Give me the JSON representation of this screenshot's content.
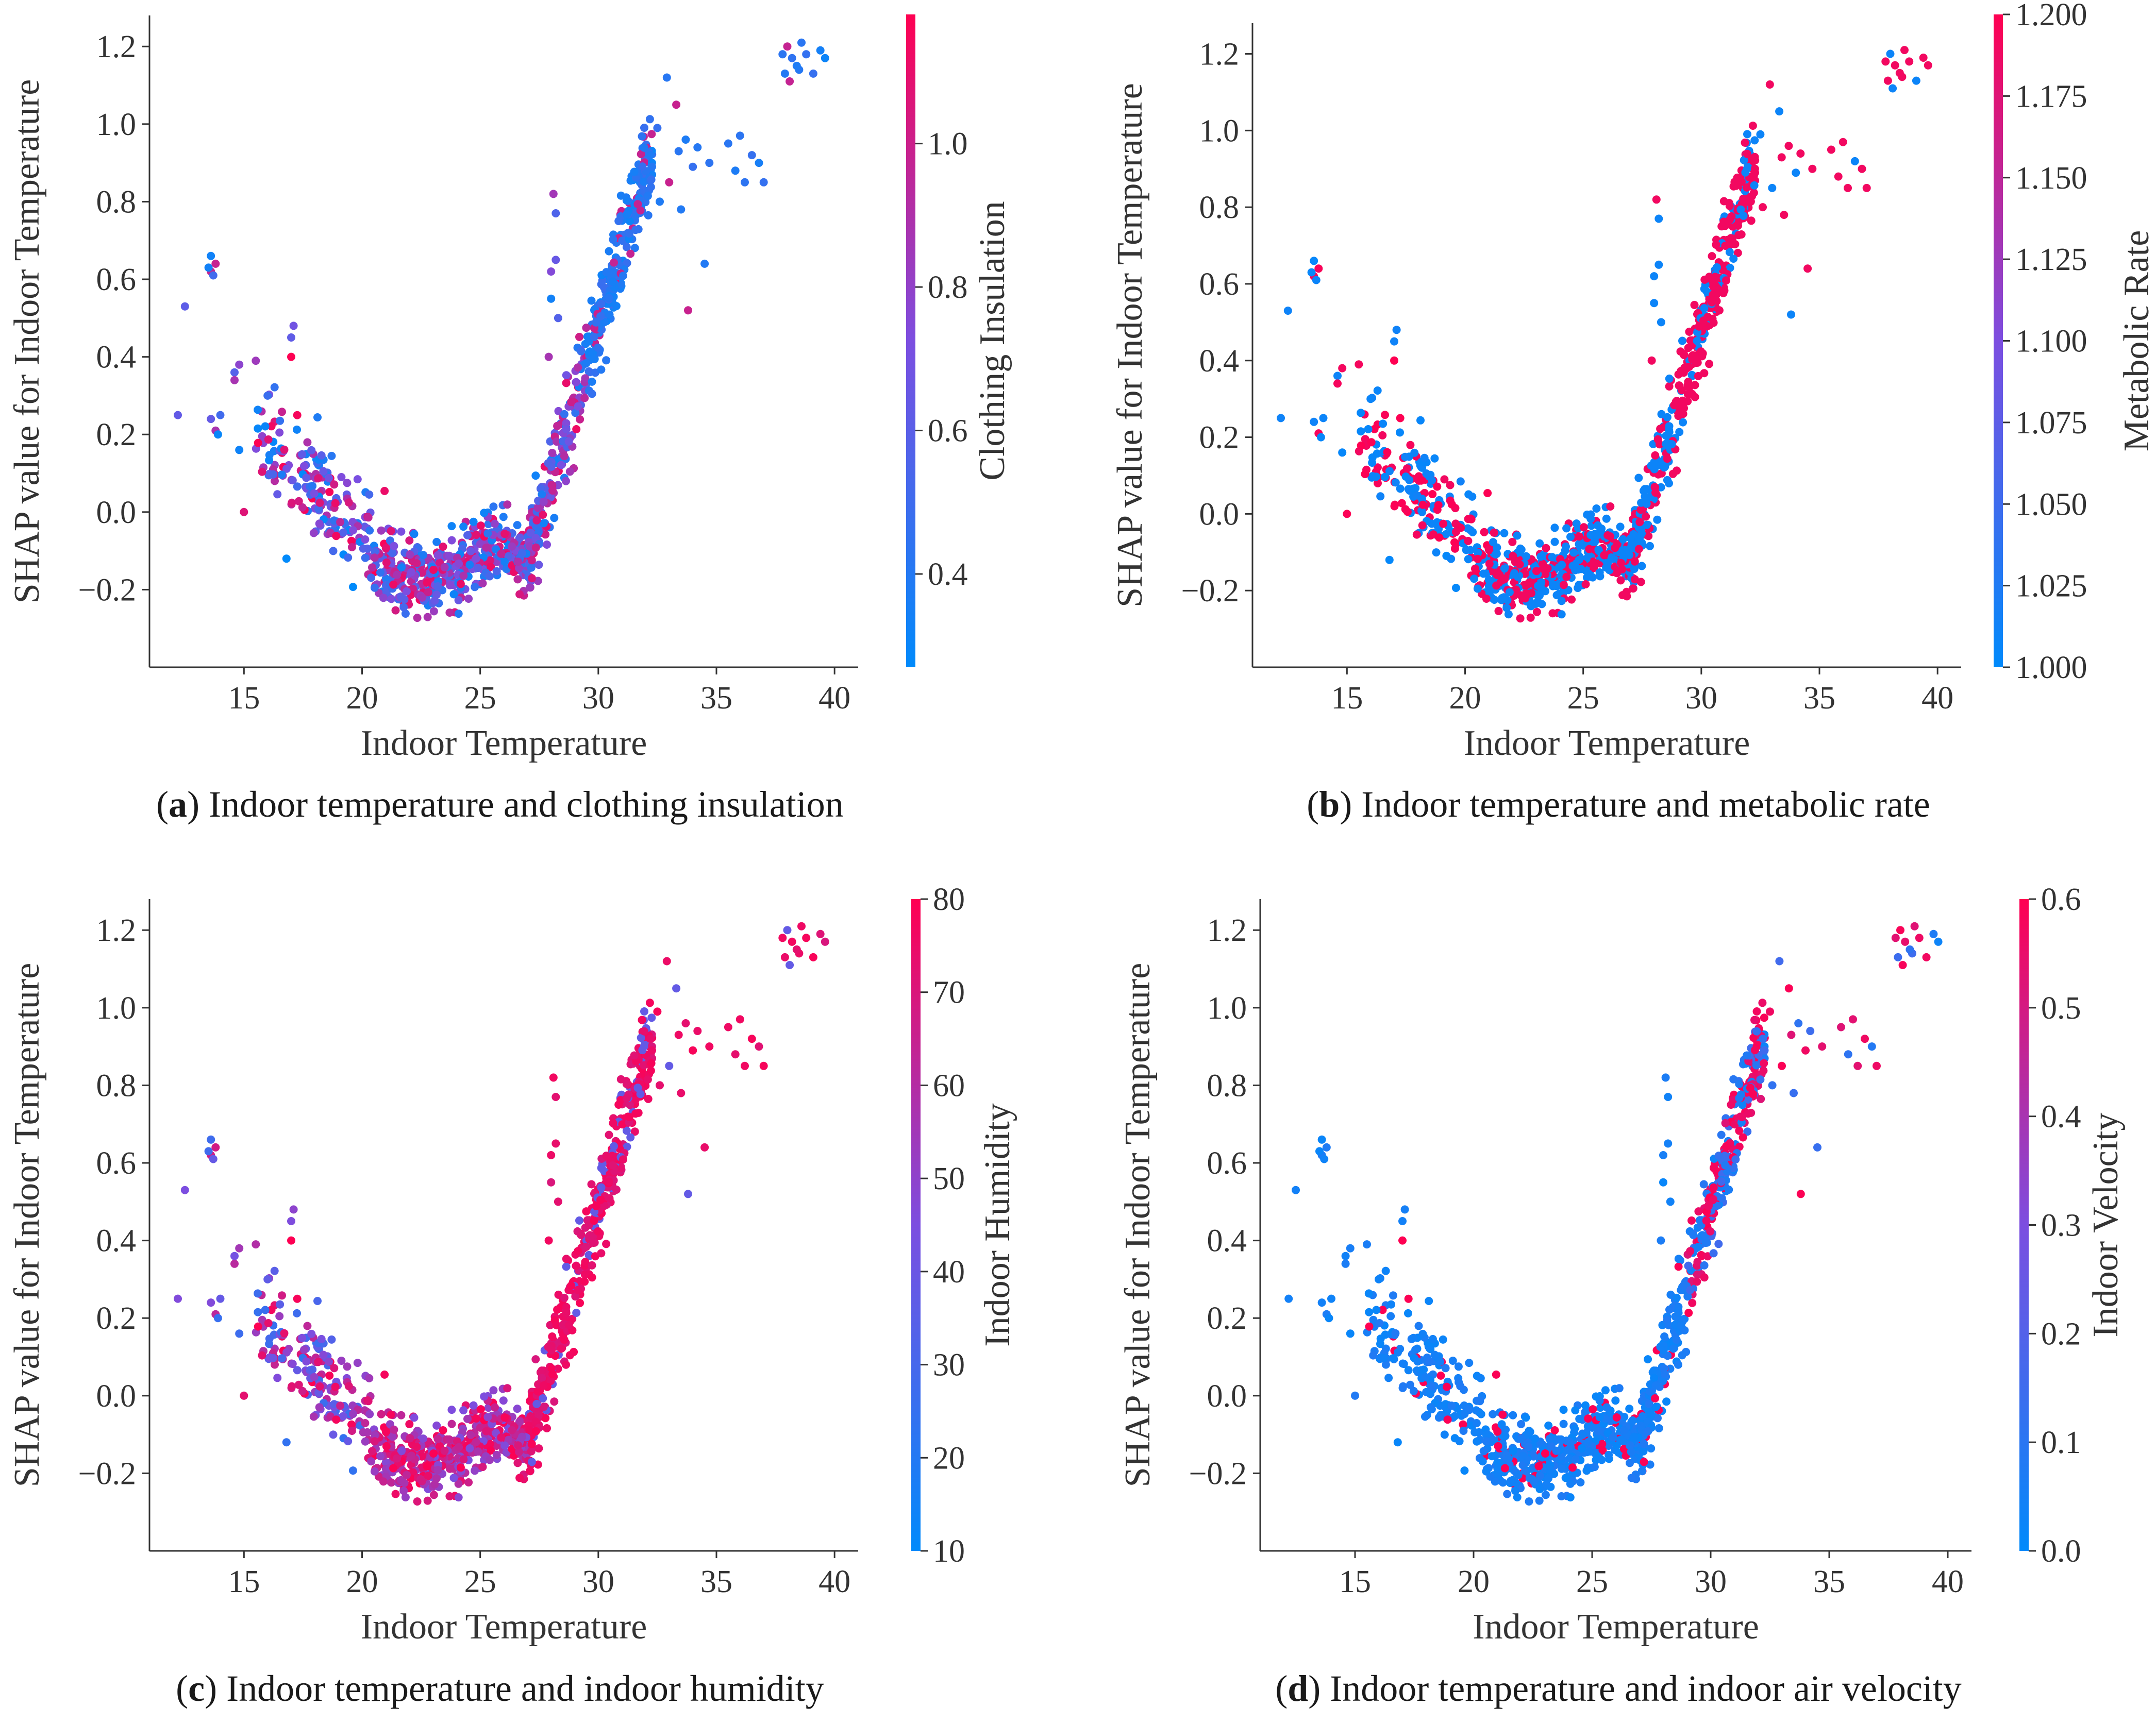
{
  "colors": {
    "low": "#008afb",
    "mid": "#7c4ee0",
    "high": "#ff0052",
    "axis": "#333333"
  },
  "chart_data": [
    {
      "id": "a",
      "type": "scatter",
      "title": "",
      "xlabel": "Indoor Temperature",
      "ylabel": "SHAP value for Indoor Temperature",
      "xlim": [
        11.0,
        41.0
      ],
      "ylim": [
        -0.4,
        1.28
      ],
      "xticks": [
        15,
        20,
        25,
        30,
        35,
        40
      ],
      "xtick_labels": [
        "15",
        "20",
        "25",
        "30",
        "35",
        "40"
      ],
      "yticks": [
        -0.2,
        0.0,
        0.2,
        0.4,
        0.6,
        0.8,
        1.0,
        1.2
      ],
      "ytick_labels": [
        "−0.2",
        "0.0",
        "0.2",
        "0.4",
        "0.6",
        "0.8",
        "1.0",
        "1.2"
      ],
      "colorbar": {
        "label": "Clothing Insulation",
        "range": [
          0.27,
          1.18
        ],
        "ticks": [
          0.4,
          0.6,
          0.8,
          1.0
        ],
        "tick_labels": [
          "0.4",
          "0.6",
          "0.8",
          "1.0"
        ]
      },
      "color_mode": "clo",
      "caption_letter": "a",
      "caption_text": " Indoor temperature and clothing insulation"
    },
    {
      "id": "b",
      "type": "scatter",
      "title": "",
      "xlabel": "Indoor Temperature",
      "ylabel": "SHAP value for Indoor Temperature",
      "xlim": [
        11.0,
        41.0
      ],
      "ylim": [
        -0.4,
        1.28
      ],
      "xticks": [
        15,
        20,
        25,
        30,
        35,
        40
      ],
      "xtick_labels": [
        "15",
        "20",
        "25",
        "30",
        "35",
        "40"
      ],
      "yticks": [
        -0.2,
        0.0,
        0.2,
        0.4,
        0.6,
        0.8,
        1.0,
        1.2
      ],
      "ytick_labels": [
        "−0.2",
        "0.0",
        "0.2",
        "0.4",
        "0.6",
        "0.8",
        "1.0",
        "1.2"
      ],
      "colorbar": {
        "label": "Metabolic Rate",
        "range": [
          1.0,
          1.2
        ],
        "ticks": [
          1.0,
          1.025,
          1.05,
          1.075,
          1.1,
          1.125,
          1.15,
          1.175,
          1.2
        ],
        "tick_labels": [
          "1.000",
          "1.025",
          "1.050",
          "1.075",
          "1.100",
          "1.125",
          "1.150",
          "1.175",
          "1.200"
        ]
      },
      "color_mode": "met",
      "caption_letter": "b",
      "caption_text": " Indoor temperature and metabolic rate"
    },
    {
      "id": "c",
      "type": "scatter",
      "title": "",
      "xlabel": "Indoor Temperature",
      "ylabel": "SHAP value for Indoor Temperature",
      "xlim": [
        11.0,
        41.0
      ],
      "ylim": [
        -0.4,
        1.28
      ],
      "xticks": [
        15,
        20,
        25,
        30,
        35,
        40
      ],
      "xtick_labels": [
        "15",
        "20",
        "25",
        "30",
        "35",
        "40"
      ],
      "yticks": [
        -0.2,
        0.0,
        0.2,
        0.4,
        0.6,
        0.8,
        1.0,
        1.2
      ],
      "ytick_labels": [
        "−0.2",
        "0.0",
        "0.2",
        "0.4",
        "0.6",
        "0.8",
        "1.0",
        "1.2"
      ],
      "colorbar": {
        "label": "Indoor Humidity",
        "range": [
          10,
          80
        ],
        "ticks": [
          10,
          20,
          30,
          40,
          50,
          60,
          70,
          80
        ],
        "tick_labels": [
          "10",
          "20",
          "30",
          "40",
          "50",
          "60",
          "70",
          "80"
        ]
      },
      "color_mode": "hum",
      "caption_letter": "c",
      "caption_text": " Indoor temperature and indoor humidity"
    },
    {
      "id": "d",
      "type": "scatter",
      "title": "",
      "xlabel": "Indoor Temperature",
      "ylabel": "SHAP value for Indoor Temperature",
      "xlim": [
        11.0,
        41.0
      ],
      "ylim": [
        -0.4,
        1.28
      ],
      "xticks": [
        15,
        20,
        25,
        30,
        35,
        40
      ],
      "xtick_labels": [
        "15",
        "20",
        "25",
        "30",
        "35",
        "40"
      ],
      "yticks": [
        -0.2,
        0.0,
        0.2,
        0.4,
        0.6,
        0.8,
        1.0,
        1.2
      ],
      "ytick_labels": [
        "−0.2",
        "0.0",
        "0.2",
        "0.4",
        "0.6",
        "0.8",
        "1.0",
        "1.2"
      ],
      "colorbar": {
        "label": "Indoor Velocity",
        "range": [
          0.0,
          0.6
        ],
        "ticks": [
          0.0,
          0.1,
          0.2,
          0.3,
          0.4,
          0.5,
          0.6
        ],
        "tick_labels": [
          "0.0",
          "0.1",
          "0.2",
          "0.3",
          "0.4",
          "0.5",
          "0.6"
        ]
      },
      "color_mode": "vel",
      "caption_letter": "d",
      "caption_text": " Indoor temperature and indoor air velocity"
    }
  ]
}
